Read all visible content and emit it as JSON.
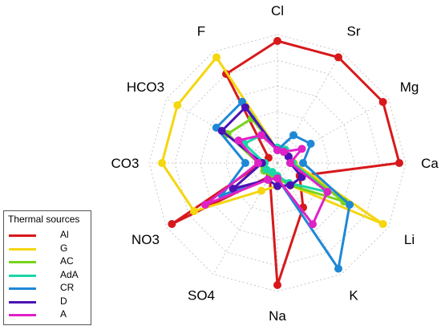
{
  "chart_data": {
    "type": "radar",
    "axes": [
      "Cl",
      "Sr",
      "Mg",
      "Ca",
      "Li",
      "K",
      "Na",
      "SO4",
      "NO3",
      "CO3",
      "HCO3",
      "F"
    ],
    "rlim": [
      0,
      1
    ],
    "grid": true,
    "legend_placement": "bottom-left",
    "legend_title": "Thermal sources",
    "series": [
      {
        "name": "Al",
        "color": "#d7191c",
        "values": [
          0.95,
          0.95,
          0.95,
          0.95,
          0.2,
          0.4,
          0.95,
          0.12,
          0.95,
          0.12,
          0.08,
          0.8
        ]
      },
      {
        "name": "G",
        "color": "#f5d60f",
        "values": [
          0.1,
          0.12,
          0.1,
          0.13,
          0.95,
          0.2,
          0.18,
          0.25,
          0.75,
          0.9,
          0.9,
          0.95
        ]
      },
      {
        "name": "AC",
        "color": "#77d31c",
        "values": [
          0.1,
          0.1,
          0.1,
          0.12,
          0.6,
          0.2,
          0.12,
          0.1,
          0.12,
          0.15,
          0.45,
          0.4
        ]
      },
      {
        "name": "AdA",
        "color": "#1bd6a8",
        "values": [
          0.12,
          0.12,
          0.1,
          0.12,
          0.45,
          0.18,
          0.1,
          0.08,
          0.1,
          0.1,
          0.3,
          0.25
        ]
      },
      {
        "name": "CR",
        "color": "#1e88d6",
        "values": [
          0.1,
          0.25,
          0.3,
          0.2,
          0.65,
          0.95,
          0.12,
          0.15,
          0.5,
          0.25,
          0.55,
          0.55
        ]
      },
      {
        "name": "D",
        "color": "#4a12b5",
        "values": [
          0.1,
          0.1,
          0.1,
          0.1,
          0.22,
          0.2,
          0.18,
          0.15,
          0.4,
          0.12,
          0.5,
          0.5
        ]
      },
      {
        "name": "A",
        "color": "#e021c6",
        "values": [
          0.1,
          0.1,
          0.22,
          0.1,
          0.45,
          0.55,
          0.12,
          0.15,
          0.65,
          0.15,
          0.35,
          0.25
        ]
      }
    ]
  }
}
